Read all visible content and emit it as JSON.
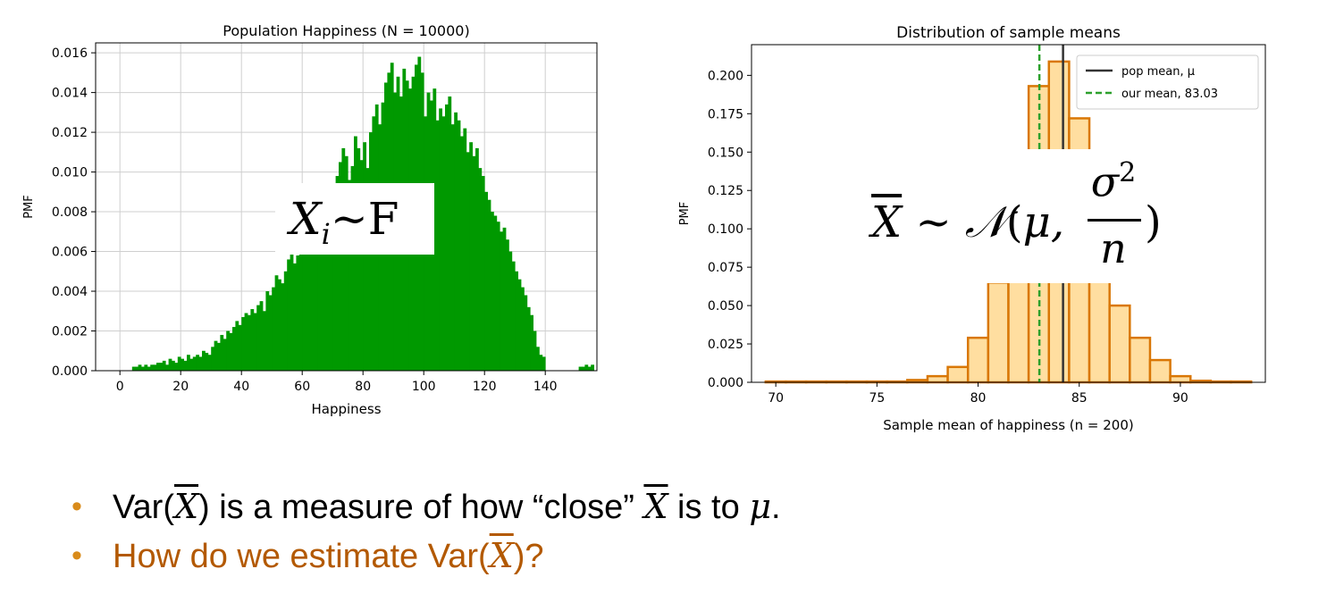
{
  "colors": {
    "hist": "#009900",
    "bar_fill": "#ffdea0",
    "bar_edge": "#d97706",
    "pop_mean": "#333333",
    "our_mean": "#2ca02c",
    "bullet2": "#b35900",
    "bullet_dot": "#d98b1a"
  },
  "chart_data": [
    {
      "type": "bar",
      "title": "Population Happiness (N = 10000)",
      "xlabel": "Happiness",
      "ylabel": "PMF",
      "xlim": [
        -8,
        157
      ],
      "ylim": [
        0,
        0.0165
      ],
      "xticks": [
        0,
        20,
        40,
        60,
        80,
        100,
        120,
        140
      ],
      "yticks": [
        "0.000",
        "0.002",
        "0.004",
        "0.006",
        "0.008",
        "0.010",
        "0.012",
        "0.014",
        "0.016"
      ],
      "grid": true,
      "bin_width": 1,
      "x_start": 4,
      "values": [
        0.0002,
        0.0002,
        0.0003,
        0.0002,
        0.0003,
        0.0002,
        0.0003,
        0.0003,
        0.0004,
        0.0004,
        0.0005,
        0.0003,
        0.0006,
        0.0005,
        0.0004,
        0.0007,
        0.0006,
        0.0005,
        0.0008,
        0.0006,
        0.0007,
        0.0008,
        0.0007,
        0.001,
        0.0009,
        0.0008,
        0.0012,
        0.0015,
        0.0014,
        0.0018,
        0.0016,
        0.002,
        0.0019,
        0.0022,
        0.0025,
        0.0023,
        0.0027,
        0.0029,
        0.0028,
        0.0031,
        0.0029,
        0.0033,
        0.0035,
        0.003,
        0.004,
        0.0038,
        0.0042,
        0.0048,
        0.0046,
        0.0044,
        0.005,
        0.0056,
        0.006,
        0.0054,
        0.0058,
        0.0062,
        0.0061,
        0.006,
        0.0066,
        0.0064,
        0.007,
        0.0075,
        0.0072,
        0.008,
        0.0085,
        0.009,
        0.0094,
        0.0098,
        0.0105,
        0.0112,
        0.0108,
        0.0096,
        0.0103,
        0.0118,
        0.0112,
        0.0106,
        0.0115,
        0.0102,
        0.012,
        0.0128,
        0.0134,
        0.0124,
        0.0135,
        0.0145,
        0.015,
        0.0155,
        0.014,
        0.0148,
        0.0138,
        0.0152,
        0.0146,
        0.0142,
        0.0148,
        0.0154,
        0.0158,
        0.015,
        0.0128,
        0.014,
        0.0136,
        0.0142,
        0.0126,
        0.0132,
        0.0128,
        0.0134,
        0.0138,
        0.0124,
        0.013,
        0.0126,
        0.0118,
        0.0122,
        0.011,
        0.0115,
        0.0108,
        0.0112,
        0.0102,
        0.0098,
        0.009,
        0.0086,
        0.008,
        0.0078,
        0.0075,
        0.007,
        0.0072,
        0.0066,
        0.006,
        0.0055,
        0.005,
        0.0046,
        0.0042,
        0.0038,
        0.0032,
        0.0028,
        0.002,
        0.0012,
        0.0008,
        0.0007,
        0.0,
        0.0,
        0.0,
        0.0,
        0.0,
        0.0,
        0.0,
        0.0,
        0.0,
        0.0,
        0.0,
        0.0002,
        0.0002,
        0.0003,
        0.0002,
        0.0003
      ]
    },
    {
      "type": "bar",
      "title": "Distribution of sample means",
      "xlabel": "Sample mean of happiness (n = 200)",
      "ylabel": "PMF",
      "xlim": [
        68.8,
        94.2
      ],
      "ylim": [
        0,
        0.22
      ],
      "xticks": [
        70,
        75,
        80,
        85,
        90
      ],
      "yticks": [
        "0.000",
        "0.025",
        "0.050",
        "0.075",
        "0.100",
        "0.125",
        "0.150",
        "0.175",
        "0.200"
      ],
      "grid": false,
      "bin_edges": [
        69.5,
        70.5,
        71.5,
        72.5,
        73.5,
        74.5,
        75.5,
        76.5,
        77.5,
        78.5,
        79.5,
        80.5,
        81.5,
        82.5,
        83.5,
        84.5,
        85.5,
        86.5,
        87.5,
        88.5,
        89.5,
        90.5,
        91.5,
        92.5,
        93.5
      ],
      "values": [
        0.0005,
        0.0005,
        0.0005,
        0.0005,
        0.0005,
        0.0005,
        0.0005,
        0.0015,
        0.004,
        0.01,
        0.029,
        0.065,
        0.13,
        0.193,
        0.209,
        0.172,
        0.11,
        0.05,
        0.029,
        0.0145,
        0.004,
        0.001,
        0.0005,
        0.0005
      ],
      "vlines": [
        {
          "name": "pop mean, μ",
          "x": 84.2,
          "style": "solid"
        },
        {
          "name": "our mean, 83.03",
          "x": 83.03,
          "style": "dashed"
        }
      ],
      "legend": [
        "pop mean, μ",
        "our mean, 83.03"
      ],
      "legend_position": "top-right"
    }
  ],
  "overlay_left": {
    "main": "X",
    "sub": "i",
    "rest": "~F"
  },
  "overlay_right": {
    "lhs": "X",
    "rel": "~",
    "dist": "𝒩",
    "open": "(",
    "mu": "μ,",
    "numer": "σ",
    "sup": "2",
    "denom": "n",
    "close": ")"
  },
  "bullets": {
    "b1": {
      "pre": "Var(",
      "var": "X",
      "mid": ") is a measure of how “close” ",
      "var2": "X",
      "mid2": " is to ",
      "mu": "μ",
      "end": "."
    },
    "b2": {
      "pre": "How do we estimate Var(",
      "var": "X",
      "end": ")?"
    },
    "dot": "•"
  }
}
